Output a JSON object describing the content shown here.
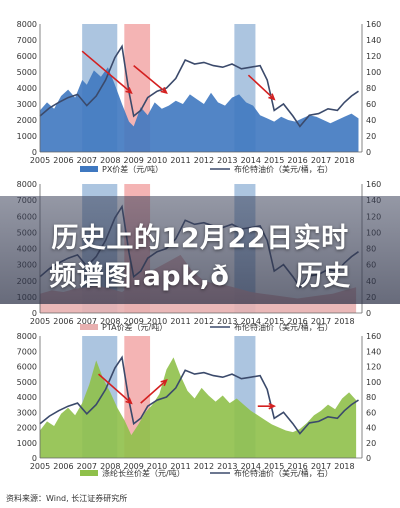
{
  "overlay": {
    "line1": "历史上的12月22日实时",
    "line2": "频谱图.apk,ð历史"
  },
  "source_text": "资料来源：Wind, 长江证券研究所",
  "colors": {
    "blue_area": "#3f78c0",
    "brown_line": "#3b4a6b",
    "green_area": "#8fc04a",
    "band_blue": "#9dbbdb",
    "band_red": "#f2a7a7",
    "arrow": "#d42020"
  },
  "chart_data": [
    {
      "type": "area",
      "ylim_left": [
        0,
        8000
      ],
      "yticks_left": [
        "0",
        "1000",
        "2000",
        "3000",
        "4000",
        "5000",
        "6000",
        "7000",
        "8000"
      ],
      "ylim_right": [
        0,
        160
      ],
      "yticks_right": [
        "0",
        "20",
        "40",
        "60",
        "80",
        "100",
        "120",
        "140",
        "160"
      ],
      "xticks": [
        "2005",
        "2006",
        "2007",
        "2008",
        "2009",
        "2010",
        "2011",
        "2012",
        "2013",
        "2014",
        "2015",
        "2016",
        "2017",
        "2018"
      ],
      "legend": [
        {
          "label": "PX价差（元/吨）",
          "style": "area",
          "color": "#3f78c0"
        },
        {
          "label": "布伦特油价（美元/桶，右）",
          "style": "line",
          "color": "#3b4a6b"
        }
      ],
      "bands": [
        [
          2006.8,
          2008.3,
          "blue"
        ],
        [
          2008.6,
          2009.7,
          "red"
        ],
        [
          2013.3,
          2014.2,
          "blue"
        ]
      ],
      "arrows": [
        [
          2006.8,
          6300,
          2008.9,
          3700
        ],
        [
          2009.0,
          5400,
          2010.4,
          3700
        ],
        [
          2013.9,
          4800,
          2015.0,
          3300
        ]
      ],
      "series": [
        {
          "axis": "left",
          "kind": "area",
          "x": [
            2005.0,
            2005.3,
            2005.6,
            2005.9,
            2006.2,
            2006.5,
            2006.8,
            2007.0,
            2007.3,
            2007.6,
            2007.9,
            2008.2,
            2008.5,
            2008.8,
            2009.0,
            2009.3,
            2009.6,
            2009.9,
            2010.2,
            2010.5,
            2010.8,
            2011.1,
            2011.4,
            2011.7,
            2012.0,
            2012.3,
            2012.6,
            2012.9,
            2013.2,
            2013.5,
            2013.8,
            2014.1,
            2014.4,
            2014.7,
            2015.0,
            2015.3,
            2015.6,
            2015.9,
            2016.2,
            2016.5,
            2016.8,
            2017.1,
            2017.4,
            2017.7,
            2018.0,
            2018.3,
            2018.6
          ],
          "values": [
            2600,
            3100,
            2700,
            3500,
            3900,
            3400,
            4500,
            4200,
            5100,
            4700,
            5300,
            4200,
            3000,
            1900,
            1600,
            2800,
            2300,
            3100,
            2700,
            2900,
            3200,
            3000,
            3600,
            3300,
            3000,
            3700,
            3100,
            2900,
            3400,
            3600,
            3100,
            2900,
            2300,
            2100,
            1900,
            2200,
            2000,
            1900,
            2100,
            2300,
            2200,
            2000,
            1800,
            2000,
            2200,
            2400,
            2100
          ]
        },
        {
          "axis": "right",
          "kind": "line",
          "x": [
            2005.0,
            2005.4,
            2005.8,
            2006.2,
            2006.6,
            2007.0,
            2007.4,
            2007.8,
            2008.2,
            2008.5,
            2008.8,
            2009.0,
            2009.3,
            2009.6,
            2010.0,
            2010.4,
            2010.8,
            2011.2,
            2011.6,
            2012.0,
            2012.4,
            2012.8,
            2013.2,
            2013.6,
            2014.0,
            2014.4,
            2014.7,
            2015.0,
            2015.4,
            2015.8,
            2016.1,
            2016.5,
            2016.9,
            2017.3,
            2017.7,
            2018.0,
            2018.3,
            2018.6
          ],
          "values": [
            45,
            55,
            62,
            68,
            72,
            58,
            70,
            90,
            118,
            132,
            75,
            45,
            52,
            68,
            76,
            80,
            92,
            115,
            110,
            112,
            108,
            106,
            110,
            104,
            106,
            108,
            90,
            52,
            60,
            45,
            32,
            46,
            48,
            54,
            52,
            62,
            70,
            76
          ]
        }
      ]
    },
    {
      "type": "area",
      "ylim_left": [
        0,
        8000
      ],
      "yticks_left": [
        "0",
        "1000",
        "2000",
        "3000",
        "4000",
        "5000",
        "6000",
        "7000",
        "8000"
      ],
      "ylim_right": [
        0,
        160
      ],
      "yticks_right": [
        "0",
        "20",
        "40",
        "60",
        "80",
        "100",
        "120",
        "140",
        "160"
      ],
      "xticks": [
        "2005",
        "2006",
        "2007",
        "2008",
        "2009",
        "2010",
        "2011",
        "2012",
        "2013",
        "2014",
        "2015",
        "2016",
        "2017",
        "2018"
      ],
      "legend": [
        {
          "label": "PTA价差（元/吨）",
          "style": "area",
          "color": "#f2a7a7"
        },
        {
          "label": "布伦特油价（美元/桶，右）",
          "style": "line",
          "color": "#3b4a6b"
        }
      ],
      "bands": [
        [
          2006.8,
          2008.3,
          "blue"
        ],
        [
          2008.6,
          2009.7,
          "red"
        ],
        [
          2013.3,
          2014.2,
          "blue"
        ]
      ],
      "series": [
        {
          "axis": "left",
          "kind": "area",
          "x": [
            2005.0,
            2005.5,
            2006.0,
            2006.5,
            2007.0,
            2007.5,
            2008.0,
            2008.5,
            2009.0,
            2009.5,
            2010.0,
            2010.5,
            2011.0,
            2011.5,
            2012.0,
            2012.5,
            2013.0,
            2013.5,
            2014.0,
            2014.5,
            2015.0,
            2015.5,
            2016.0,
            2016.5,
            2017.0,
            2017.5,
            2018.0,
            2018.5
          ],
          "values": [
            1200,
            1400,
            1300,
            1500,
            1600,
            1700,
            1500,
            1300,
            1800,
            2400,
            2800,
            3200,
            3600,
            2600,
            2000,
            1800,
            1700,
            1500,
            1300,
            1200,
            1100,
            1000,
            900,
            1000,
            1100,
            1200,
            1400,
            1600
          ]
        },
        {
          "axis": "right",
          "kind": "line",
          "x": [
            2005.0,
            2005.4,
            2005.8,
            2006.2,
            2006.6,
            2007.0,
            2007.4,
            2007.8,
            2008.2,
            2008.5,
            2008.8,
            2009.0,
            2009.3,
            2009.6,
            2010.0,
            2010.4,
            2010.8,
            2011.2,
            2011.6,
            2012.0,
            2012.4,
            2012.8,
            2013.2,
            2013.6,
            2014.0,
            2014.4,
            2014.7,
            2015.0,
            2015.4,
            2015.8,
            2016.1,
            2016.5,
            2016.9,
            2017.3,
            2017.7,
            2018.0,
            2018.3,
            2018.6
          ],
          "values": [
            45,
            55,
            62,
            68,
            72,
            58,
            70,
            90,
            118,
            132,
            75,
            45,
            52,
            68,
            76,
            80,
            92,
            115,
            110,
            112,
            108,
            106,
            110,
            104,
            106,
            108,
            90,
            52,
            60,
            45,
            32,
            46,
            48,
            54,
            52,
            62,
            70,
            76
          ]
        }
      ]
    },
    {
      "type": "area",
      "ylim_left": [
        0,
        8000
      ],
      "yticks_left": [
        "0",
        "1000",
        "2000",
        "3000",
        "4000",
        "5000",
        "6000",
        "7000",
        "8000"
      ],
      "ylim_right": [
        0,
        160
      ],
      "yticks_right": [
        "0",
        "20",
        "40",
        "60",
        "80",
        "100",
        "120",
        "140",
        "160"
      ],
      "xticks": [
        "2005",
        "2006",
        "2007",
        "2008",
        "2009",
        "2010",
        "2011",
        "2012",
        "2013",
        "2014",
        "2015",
        "2016",
        "2017",
        "2018"
      ],
      "legend": [
        {
          "label": "涤纶长丝价差（元/吨）",
          "style": "area",
          "color": "#8fc04a"
        },
        {
          "label": "布伦特油价（美元/桶，右）",
          "style": "line",
          "color": "#3b4a6b"
        }
      ],
      "bands": [
        [
          2006.8,
          2008.3,
          "blue"
        ],
        [
          2008.6,
          2009.7,
          "red"
        ],
        [
          2013.3,
          2014.2,
          "blue"
        ]
      ],
      "arrows": [
        [
          2007.5,
          5500,
          2008.9,
          3600
        ],
        [
          2009.3,
          3600,
          2010.4,
          5100
        ],
        [
          2014.3,
          3400,
          2015.0,
          3400
        ]
      ],
      "series": [
        {
          "axis": "left",
          "kind": "area",
          "x": [
            2005.0,
            2005.3,
            2005.6,
            2005.9,
            2006.2,
            2006.5,
            2006.8,
            2007.1,
            2007.4,
            2007.7,
            2008.0,
            2008.3,
            2008.6,
            2008.9,
            2009.2,
            2009.5,
            2009.8,
            2010.1,
            2010.4,
            2010.7,
            2011.0,
            2011.3,
            2011.6,
            2011.9,
            2012.2,
            2012.5,
            2012.8,
            2013.1,
            2013.4,
            2013.7,
            2014.0,
            2014.3,
            2014.6,
            2014.9,
            2015.2,
            2015.5,
            2015.8,
            2016.1,
            2016.4,
            2016.7,
            2017.0,
            2017.3,
            2017.6,
            2017.9,
            2018.2,
            2018.5
          ],
          "values": [
            1800,
            2400,
            2100,
            2900,
            3300,
            2800,
            3600,
            4800,
            6400,
            5200,
            4300,
            3300,
            2500,
            1500,
            2200,
            3000,
            3500,
            4200,
            5800,
            6600,
            5400,
            4400,
            3900,
            4600,
            4100,
            3700,
            4100,
            3600,
            3900,
            3500,
            3100,
            2800,
            2500,
            2200,
            2000,
            1800,
            1700,
            1900,
            2300,
            2800,
            3100,
            3500,
            3200,
            3900,
            4300,
            3800
          ]
        },
        {
          "axis": "right",
          "kind": "line",
          "x": [
            2005.0,
            2005.4,
            2005.8,
            2006.2,
            2006.6,
            2007.0,
            2007.4,
            2007.8,
            2008.2,
            2008.5,
            2008.8,
            2009.0,
            2009.3,
            2009.6,
            2010.0,
            2010.4,
            2010.8,
            2011.2,
            2011.6,
            2012.0,
            2012.4,
            2012.8,
            2013.2,
            2013.6,
            2014.0,
            2014.4,
            2014.7,
            2015.0,
            2015.4,
            2015.8,
            2016.1,
            2016.5,
            2016.9,
            2017.3,
            2017.7,
            2018.0,
            2018.3,
            2018.6
          ],
          "values": [
            45,
            55,
            62,
            68,
            72,
            58,
            70,
            90,
            118,
            132,
            75,
            45,
            52,
            68,
            76,
            80,
            92,
            115,
            110,
            112,
            108,
            106,
            110,
            104,
            106,
            108,
            90,
            52,
            60,
            45,
            32,
            46,
            48,
            54,
            52,
            62,
            70,
            76
          ]
        }
      ]
    }
  ]
}
